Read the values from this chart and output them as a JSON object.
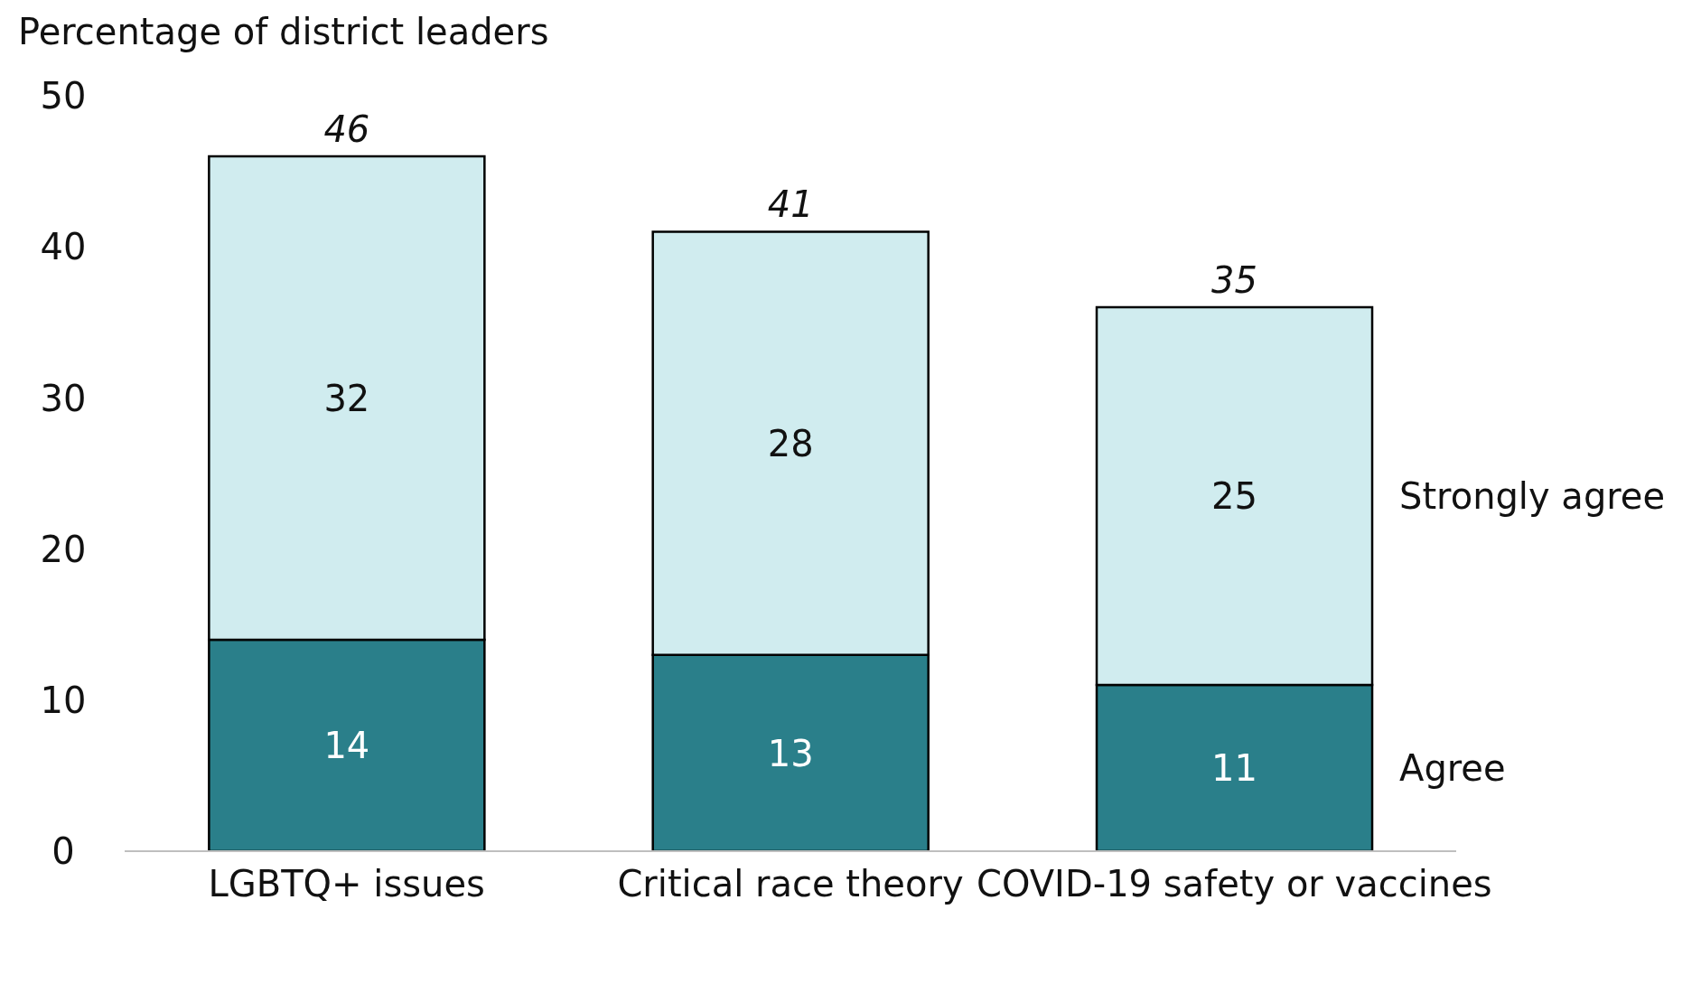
{
  "chart_data": {
    "type": "bar",
    "ylabel": "Percentage of district leaders",
    "categories": [
      "LGBTQ+ issues",
      "Critical race theory",
      "COVID-19 safety or vaccines"
    ],
    "stacked": true,
    "series": [
      {
        "name": "Agree",
        "color": "#2a7f8a",
        "values": [
          14,
          13,
          11
        ]
      },
      {
        "name": "Strongly agree",
        "color": "#d0ecef",
        "values": [
          32,
          28,
          25
        ]
      }
    ],
    "totals": [
      "46",
      "41",
      "35"
    ],
    "data_labels": true,
    "ylim": [
      0,
      50
    ],
    "yticks": [
      0,
      10,
      20,
      30,
      40,
      50
    ],
    "grid": false,
    "legend": false
  }
}
